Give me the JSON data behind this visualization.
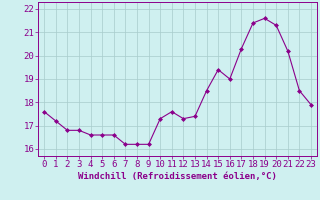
{
  "x": [
    0,
    1,
    2,
    3,
    4,
    5,
    6,
    7,
    8,
    9,
    10,
    11,
    12,
    13,
    14,
    15,
    16,
    17,
    18,
    19,
    20,
    21,
    22,
    23
  ],
  "y": [
    17.6,
    17.2,
    16.8,
    16.8,
    16.6,
    16.6,
    16.6,
    16.2,
    16.2,
    16.2,
    17.3,
    17.6,
    17.3,
    17.4,
    18.5,
    19.4,
    19.0,
    20.3,
    21.4,
    21.6,
    21.3,
    20.2,
    18.5,
    17.9
  ],
  "line_color": "#8B008B",
  "marker": "D",
  "marker_size": 2,
  "bg_color": "#cff0f0",
  "grid_color": "#a8cccc",
  "xlabel": "Windchill (Refroidissement éolien,°C)",
  "ylim": [
    15.7,
    22.3
  ],
  "xlim": [
    -0.5,
    23.5
  ],
  "yticks": [
    16,
    17,
    18,
    19,
    20,
    21,
    22
  ],
  "xticks": [
    0,
    1,
    2,
    3,
    4,
    5,
    6,
    7,
    8,
    9,
    10,
    11,
    12,
    13,
    14,
    15,
    16,
    17,
    18,
    19,
    20,
    21,
    22,
    23
  ],
  "tick_fontsize": 6.5,
  "xlabel_fontsize": 6.5
}
